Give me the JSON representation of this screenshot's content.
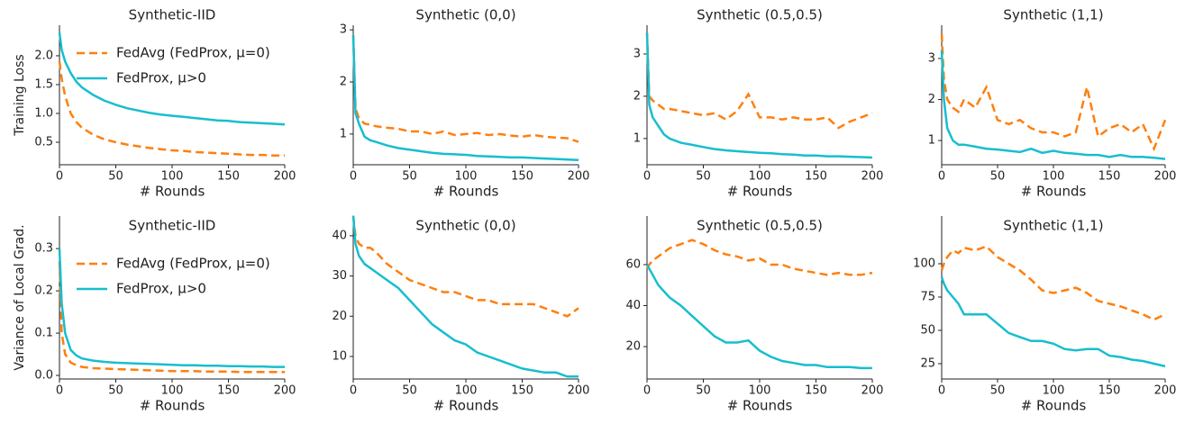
{
  "chart_data": [
    {
      "type": "line",
      "title": "Synthetic-IID",
      "xlabel": "# Rounds",
      "ylabel": "Training Loss",
      "legend": "upper right",
      "x": [
        0,
        2,
        5,
        10,
        15,
        20,
        30,
        40,
        50,
        60,
        70,
        80,
        90,
        100,
        110,
        120,
        130,
        140,
        150,
        160,
        170,
        180,
        190,
        200
      ],
      "series": [
        {
          "name": "FedAvg (FedProx, μ=0)",
          "color": "#ff7f0e",
          "linestyle": "dashed",
          "values": [
            1.9,
            1.6,
            1.3,
            1.0,
            0.85,
            0.75,
            0.63,
            0.55,
            0.5,
            0.46,
            0.43,
            0.4,
            0.38,
            0.36,
            0.35,
            0.33,
            0.32,
            0.31,
            0.3,
            0.29,
            0.28,
            0.28,
            0.27,
            0.27
          ]
        },
        {
          "name": "FedProx, μ>0",
          "color": "#17becf",
          "linestyle": "solid",
          "values": [
            2.4,
            2.1,
            1.9,
            1.7,
            1.55,
            1.45,
            1.32,
            1.22,
            1.15,
            1.09,
            1.05,
            1.01,
            0.98,
            0.96,
            0.94,
            0.92,
            0.9,
            0.88,
            0.87,
            0.85,
            0.84,
            0.83,
            0.82,
            0.81
          ]
        }
      ],
      "xlim": [
        0,
        200
      ],
      "ylim": [
        0.11,
        2.53
      ],
      "xticks": [
        0,
        50,
        100,
        150,
        200
      ],
      "yticks": [
        0.5,
        {
          "value": 1,
          "label": "1.0"
        },
        1.5,
        {
          "value": 2,
          "label": "2.0"
        }
      ]
    },
    {
      "type": "line",
      "title": "Synthetic (0,0)",
      "xlabel": "# Rounds",
      "x": [
        0,
        2,
        5,
        10,
        15,
        20,
        30,
        40,
        50,
        60,
        70,
        80,
        90,
        100,
        110,
        120,
        130,
        140,
        150,
        160,
        170,
        180,
        190,
        200
      ],
      "series": [
        {
          "color": "#ff7f0e",
          "linestyle": "dashed",
          "values": [
            2.9,
            1.5,
            1.3,
            1.2,
            1.18,
            1.15,
            1.12,
            1.1,
            1.05,
            1.05,
            1.0,
            1.05,
            0.98,
            1.0,
            1.02,
            0.98,
            1.0,
            0.97,
            0.95,
            0.98,
            0.95,
            0.93,
            0.92,
            0.85
          ]
        },
        {
          "color": "#17becf",
          "linestyle": "solid",
          "values": [
            2.9,
            1.4,
            1.2,
            0.95,
            0.88,
            0.85,
            0.78,
            0.73,
            0.7,
            0.67,
            0.64,
            0.62,
            0.61,
            0.6,
            0.58,
            0.57,
            0.56,
            0.55,
            0.55,
            0.54,
            0.53,
            0.52,
            0.51,
            0.5
          ]
        }
      ],
      "xlim": [
        0,
        200
      ],
      "ylim": [
        0.41,
        3.09
      ],
      "xticks": [
        0,
        50,
        100,
        150,
        200
      ],
      "yticks": [
        1,
        2,
        3
      ]
    },
    {
      "type": "line",
      "title": "Synthetic (0.5,0.5)",
      "xlabel": "# Rounds",
      "x": [
        0,
        2,
        5,
        10,
        15,
        20,
        30,
        40,
        50,
        60,
        70,
        80,
        90,
        100,
        110,
        120,
        130,
        140,
        150,
        160,
        170,
        180,
        190,
        200
      ],
      "series": [
        {
          "color": "#ff7f0e",
          "linestyle": "dashed",
          "values": [
            3.5,
            2.0,
            1.9,
            1.8,
            1.7,
            1.7,
            1.65,
            1.6,
            1.55,
            1.6,
            1.45,
            1.65,
            2.05,
            1.5,
            1.5,
            1.45,
            1.5,
            1.45,
            1.45,
            1.5,
            1.25,
            1.4,
            1.5,
            1.6
          ]
        },
        {
          "color": "#17becf",
          "linestyle": "solid",
          "values": [
            3.5,
            1.8,
            1.5,
            1.3,
            1.1,
            1.0,
            0.9,
            0.85,
            0.8,
            0.75,
            0.72,
            0.7,
            0.68,
            0.66,
            0.65,
            0.63,
            0.62,
            0.6,
            0.6,
            0.58,
            0.58,
            0.57,
            0.56,
            0.55
          ]
        }
      ],
      "xlim": [
        0,
        200
      ],
      "ylim": [
        0.38,
        3.68
      ],
      "xticks": [
        0,
        50,
        100,
        150,
        200
      ],
      "yticks": [
        1,
        2,
        3
      ]
    },
    {
      "type": "line",
      "title": "Synthetic (1,1)",
      "xlabel": "# Rounds",
      "x": [
        0,
        2,
        5,
        10,
        15,
        20,
        30,
        40,
        50,
        60,
        70,
        80,
        90,
        100,
        110,
        120,
        130,
        140,
        150,
        160,
        170,
        180,
        190,
        200
      ],
      "series": [
        {
          "color": "#ff7f0e",
          "linestyle": "dashed",
          "values": [
            3.6,
            2.5,
            2.0,
            1.8,
            1.7,
            2.0,
            1.8,
            2.3,
            1.5,
            1.4,
            1.5,
            1.3,
            1.2,
            1.2,
            1.1,
            1.2,
            2.3,
            1.1,
            1.3,
            1.4,
            1.2,
            1.4,
            0.8,
            1.5
          ]
        },
        {
          "color": "#17becf",
          "linestyle": "solid",
          "values": [
            3.2,
            2.0,
            1.3,
            1.0,
            0.9,
            0.9,
            0.85,
            0.8,
            0.78,
            0.75,
            0.72,
            0.8,
            0.7,
            0.75,
            0.7,
            0.68,
            0.65,
            0.65,
            0.6,
            0.65,
            0.6,
            0.6,
            0.58,
            0.55
          ]
        }
      ],
      "xlim": [
        0,
        200
      ],
      "ylim": [
        0.41,
        3.81
      ],
      "xticks": [
        0,
        50,
        100,
        150,
        200
      ],
      "yticks": [
        1,
        2,
        3
      ]
    },
    {
      "type": "line",
      "title": "Synthetic-IID",
      "xlabel": "# Rounds",
      "ylabel": "Variance of Local Grad.",
      "legend": "upper right",
      "x": [
        0,
        2,
        5,
        10,
        15,
        20,
        30,
        40,
        50,
        60,
        70,
        80,
        90,
        100,
        110,
        120,
        130,
        140,
        150,
        160,
        170,
        180,
        190,
        200
      ],
      "series": [
        {
          "name": "FedAvg (FedProx, μ=0)",
          "color": "#ff7f0e",
          "linestyle": "dashed",
          "values": [
            0.27,
            0.1,
            0.05,
            0.03,
            0.024,
            0.02,
            0.017,
            0.016,
            0.015,
            0.014,
            0.013,
            0.012,
            0.011,
            0.01,
            0.01,
            0.01,
            0.009,
            0.009,
            0.009,
            0.008,
            0.008,
            0.008,
            0.008,
            0.008
          ]
        },
        {
          "name": "FedProx, μ>0",
          "color": "#17becf",
          "linestyle": "solid",
          "values": [
            0.3,
            0.17,
            0.1,
            0.06,
            0.047,
            0.04,
            0.035,
            0.032,
            0.03,
            0.029,
            0.028,
            0.027,
            0.026,
            0.025,
            0.024,
            0.024,
            0.023,
            0.023,
            0.022,
            0.022,
            0.021,
            0.021,
            0.02,
            0.02
          ]
        }
      ],
      "xlim": [
        0,
        200
      ],
      "ylim": [
        -0.0085,
        0.377
      ],
      "xticks": [
        0,
        50,
        100,
        150,
        200
      ],
      "yticks": [
        {
          "value": 0,
          "label": "0.0"
        },
        0.1,
        0.2,
        0.3
      ]
    },
    {
      "type": "line",
      "title": "Synthetic (0,0)",
      "xlabel": "# Rounds",
      "x": [
        0,
        2,
        5,
        10,
        15,
        20,
        30,
        40,
        50,
        60,
        70,
        80,
        90,
        100,
        110,
        120,
        130,
        140,
        150,
        160,
        170,
        180,
        190,
        200
      ],
      "series": [
        {
          "color": "#ff7f0e",
          "linestyle": "dashed",
          "values": [
            45,
            40,
            38,
            37,
            37,
            36,
            33,
            31,
            29,
            28,
            27,
            26,
            26,
            25,
            24,
            24,
            23,
            23,
            23,
            23,
            22,
            21,
            20,
            22
          ]
        },
        {
          "color": "#17becf",
          "linestyle": "solid",
          "values": [
            45,
            38,
            35,
            33,
            32,
            31,
            29,
            27,
            24,
            21,
            18,
            16,
            14,
            13,
            11,
            10,
            9,
            8,
            7,
            6.5,
            6,
            6,
            5,
            5
          ]
        }
      ],
      "xlim": [
        0,
        200
      ],
      "ylim": [
        4.4,
        44.9
      ],
      "xticks": [
        0,
        50,
        100,
        150,
        200
      ],
      "yticks": [
        10,
        20,
        30,
        40
      ]
    },
    {
      "type": "line",
      "title": "Synthetic (0.5,0.5)",
      "xlabel": "# Rounds",
      "x": [
        0,
        2,
        5,
        10,
        15,
        20,
        30,
        40,
        50,
        60,
        70,
        80,
        90,
        100,
        110,
        120,
        130,
        140,
        150,
        160,
        170,
        180,
        190,
        200
      ],
      "series": [
        {
          "color": "#ff7f0e",
          "linestyle": "dashed",
          "values": [
            58,
            60,
            62,
            64,
            66,
            68,
            70,
            72,
            70,
            67,
            65,
            64,
            62,
            63,
            60,
            60,
            58,
            57,
            56,
            55,
            56,
            55,
            55,
            56
          ]
        },
        {
          "color": "#17becf",
          "linestyle": "solid",
          "values": [
            60,
            58,
            55,
            50,
            47,
            44,
            40,
            35,
            30,
            25,
            22,
            22,
            23,
            18,
            15,
            13,
            12,
            11,
            11,
            10,
            10,
            10,
            9.5,
            9.5
          ]
        }
      ],
      "xlim": [
        0,
        200
      ],
      "ylim": [
        4.2,
        83.7
      ],
      "xticks": [
        0,
        50,
        100,
        150,
        200
      ],
      "yticks": [
        20,
        40,
        60
      ]
    },
    {
      "type": "line",
      "title": "Synthetic (1,1)",
      "xlabel": "# Rounds",
      "x": [
        0,
        2,
        5,
        10,
        15,
        20,
        30,
        40,
        50,
        60,
        70,
        80,
        90,
        100,
        110,
        120,
        130,
        140,
        150,
        160,
        170,
        180,
        190,
        200
      ],
      "series": [
        {
          "color": "#ff7f0e",
          "linestyle": "dashed",
          "values": [
            95,
            100,
            105,
            110,
            108,
            112,
            110,
            113,
            105,
            100,
            95,
            88,
            80,
            78,
            80,
            82,
            78,
            72,
            70,
            68,
            65,
            62,
            58,
            62
          ]
        },
        {
          "color": "#17becf",
          "linestyle": "solid",
          "values": [
            90,
            85,
            80,
            75,
            70,
            62,
            62,
            62,
            55,
            48,
            45,
            42,
            42,
            40,
            36,
            35,
            36,
            36,
            31,
            30,
            28,
            27,
            25,
            23
          ]
        }
      ],
      "xlim": [
        0,
        200
      ],
      "ylim": [
        13.5,
        135.8
      ],
      "xticks": [
        0,
        50,
        100,
        150,
        200
      ],
      "yticks": [
        25,
        50,
        75,
        100
      ]
    }
  ]
}
